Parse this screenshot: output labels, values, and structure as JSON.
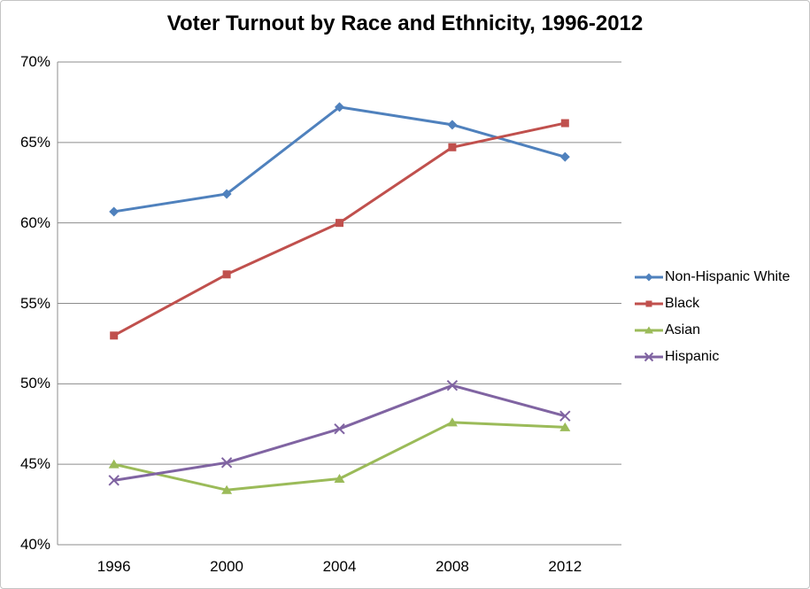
{
  "title": "Voter Turnout by Race and Ethnicity, 1996-2012",
  "chart_data": {
    "type": "line",
    "categories": [
      "1996",
      "2000",
      "2004",
      "2008",
      "2012"
    ],
    "series": [
      {
        "name": "Non-Hispanic White",
        "color": "#4F81BD",
        "marker": "diamond",
        "values": [
          60.7,
          61.8,
          67.2,
          66.1,
          64.1
        ]
      },
      {
        "name": "Black",
        "color": "#C0504D",
        "marker": "square",
        "values": [
          53.0,
          56.8,
          60.0,
          64.7,
          66.2
        ]
      },
      {
        "name": "Asian",
        "color": "#9BBB59",
        "marker": "triangle",
        "values": [
          45.0,
          43.4,
          44.1,
          47.6,
          47.3
        ]
      },
      {
        "name": "Hispanic",
        "color": "#8064A2",
        "marker": "x",
        "values": [
          44.0,
          45.1,
          47.2,
          49.9,
          48.0
        ]
      }
    ],
    "title": "Voter Turnout by Race and Ethnicity, 1996-2012",
    "xlabel": "",
    "ylabel": "",
    "ylim": [
      40,
      70
    ],
    "ytick_step": 5,
    "ytick_labels": [
      "40%",
      "45%",
      "50%",
      "55%",
      "60%",
      "65%",
      "70%"
    ],
    "grid": true,
    "legend_position": "right"
  },
  "colors": {
    "gridline": "#8C8C8C",
    "axis": "#8C8C8C",
    "background": "#FFFFFF",
    "border": "#C4C4C4",
    "title_text": "#000000",
    "tick_text": "#000000"
  }
}
